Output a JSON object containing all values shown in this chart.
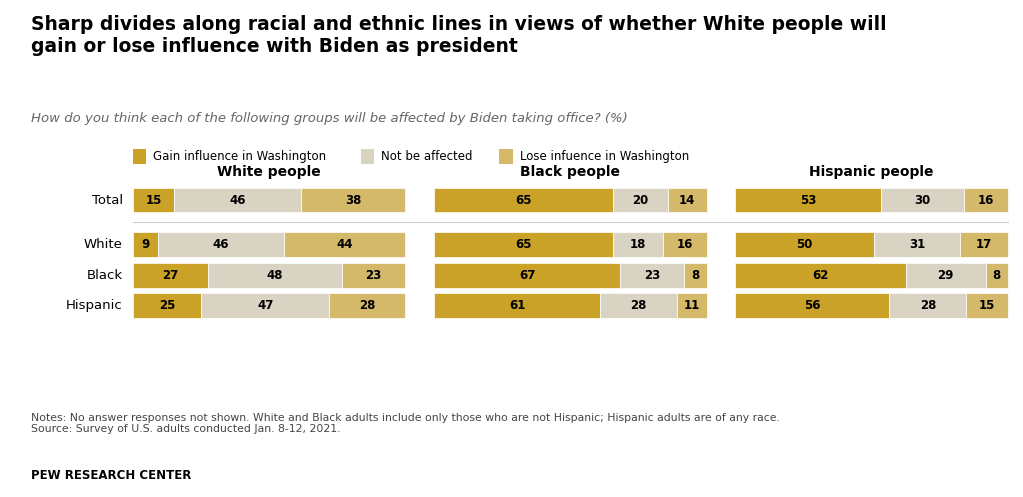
{
  "title": "Sharp divides along racial and ethnic lines in views of whether White people will\ngain or lose influence with Biden as president",
  "subtitle": "How do you think each of the following groups will be affected by Biden taking office? (%)",
  "note": "Notes: No answer responses not shown. White and Black adults include only those who are not Hispanic; Hispanic adults are of any race.\nSource: Survey of U.S. adults conducted Jan. 8-12, 2021.",
  "source_label": "PEW RESEARCH CENTER",
  "legend": [
    "Gain influence in Washington",
    "Not be affected",
    "Lose infuence in Washington"
  ],
  "colors": {
    "gain": "#C9A227",
    "not_affected": "#D9D3C3",
    "lose": "#D4B96A"
  },
  "group_headers": [
    "White people",
    "Black people",
    "Hispanic people"
  ],
  "row_names": [
    "Total",
    "White",
    "Black",
    "Hispanic"
  ],
  "data": {
    "white_people": {
      "Total": [
        15,
        46,
        38
      ],
      "White": [
        9,
        46,
        44
      ],
      "Black": [
        27,
        48,
        23
      ],
      "Hispanic": [
        25,
        47,
        28
      ]
    },
    "black_people": {
      "Total": [
        65,
        20,
        14
      ],
      "White": [
        65,
        18,
        16
      ],
      "Black": [
        67,
        23,
        8
      ],
      "Hispanic": [
        61,
        28,
        11
      ]
    },
    "hispanic_people": {
      "Total": [
        53,
        30,
        16
      ],
      "White": [
        50,
        31,
        17
      ],
      "Black": [
        62,
        29,
        8
      ],
      "Hispanic": [
        56,
        28,
        15
      ]
    }
  }
}
